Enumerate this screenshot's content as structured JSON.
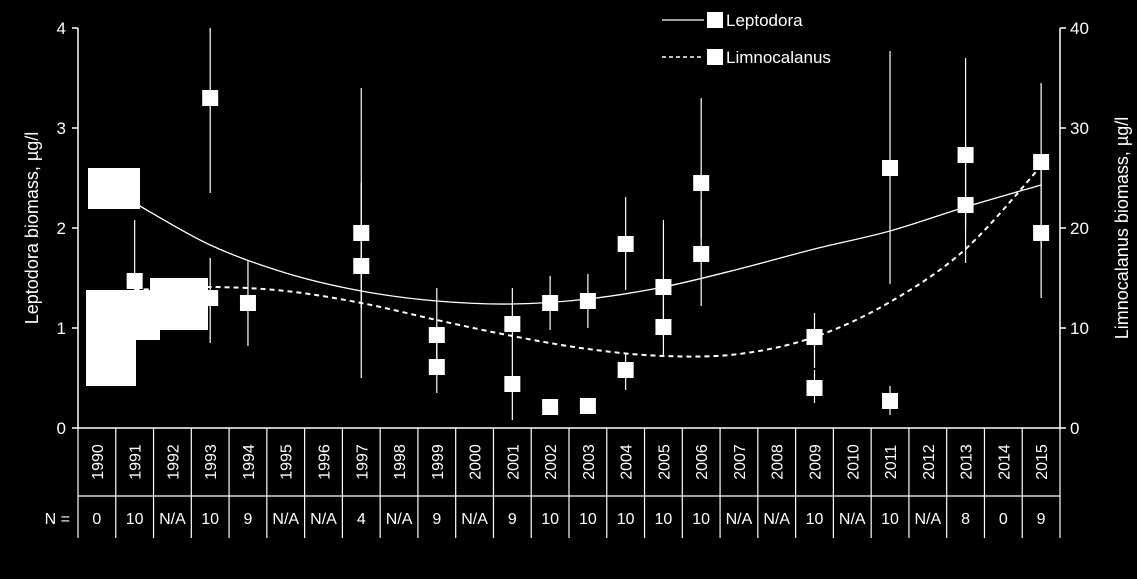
{
  "chart_data": {
    "type": "scatter",
    "years": [
      "1990",
      "1991",
      "1992",
      "1993",
      "1994",
      "1995",
      "1996",
      "1997",
      "1998",
      "1999",
      "2000",
      "2001",
      "2002",
      "2003",
      "2004",
      "2005",
      "2006",
      "2007",
      "2008",
      "2009",
      "2010",
      "2011",
      "2012",
      "2013",
      "2014",
      "2015"
    ],
    "n_label": "N =",
    "n_values": [
      "0",
      "10",
      "N/A",
      "10",
      "9",
      "N/A",
      "N/A",
      "4",
      "N/A",
      "9",
      "N/A",
      "9",
      "10",
      "10",
      "10",
      "10",
      "10",
      "N/A",
      "N/A",
      "10",
      "N/A",
      "10",
      "N/A",
      "8",
      "0",
      "9"
    ],
    "left_axis": {
      "label": "Leptodora biomass, µg/l",
      "min": 0,
      "max": 4,
      "ticks": [
        "0",
        "1",
        "2",
        "3",
        "4"
      ]
    },
    "right_axis": {
      "label": "Limnocalanus biomass, µg/l",
      "min": 0,
      "max": 40,
      "ticks": [
        "0",
        "10",
        "20",
        "30",
        "40"
      ]
    },
    "legend": [
      {
        "name": "Leptodora",
        "line": "solid"
      },
      {
        "name": "Limnocalanus",
        "line": "dashed"
      }
    ],
    "series": [
      {
        "name": "Leptodora",
        "axis": "left",
        "points": [
          {
            "year": "1991",
            "y": 1.47,
            "lo": 0.9,
            "hi": 2.08
          },
          {
            "year": "1993",
            "y": 1.3,
            "lo": 0.85,
            "hi": 1.7
          },
          {
            "year": "1994",
            "y": 1.25,
            "lo": 0.82,
            "hi": 1.68
          },
          {
            "year": "1997",
            "y": 1.95,
            "lo": 1.2,
            "hi": 2.45
          },
          {
            "year": "1999",
            "y": 0.61,
            "lo": 0.35,
            "hi": 0.85
          },
          {
            "year": "2001",
            "y": 0.44,
            "lo": 0.08,
            "hi": 0.7
          },
          {
            "year": "2002",
            "y": 1.25,
            "lo": 0.98,
            "hi": 1.52
          },
          {
            "year": "2003",
            "y": 1.27,
            "lo": 1.0,
            "hi": 1.54
          },
          {
            "year": "2004",
            "y": 1.84,
            "lo": 1.38,
            "hi": 2.31
          },
          {
            "year": "2005",
            "y": 1.01,
            "lo": 0.72,
            "hi": 1.3
          },
          {
            "year": "2006",
            "y": 1.74,
            "lo": 1.22,
            "hi": 2.29
          },
          {
            "year": "2009",
            "y": 0.4,
            "lo": 0.25,
            "hi": 0.58
          },
          {
            "year": "2011",
            "y": 2.6,
            "lo": 1.44,
            "hi": 3.77
          },
          {
            "year": "2013",
            "y": 2.23,
            "lo": 1.65,
            "hi": 2.85
          },
          {
            "year": "2015",
            "y": 1.95,
            "lo": 1.3,
            "hi": 2.6
          }
        ],
        "trend": [
          {
            "year": "1991",
            "y": 2.25
          },
          {
            "year": "1993",
            "y": 1.83
          },
          {
            "year": "1995",
            "y": 1.55
          },
          {
            "year": "1997",
            "y": 1.37
          },
          {
            "year": "1999",
            "y": 1.27
          },
          {
            "year": "2001",
            "y": 1.24
          },
          {
            "year": "2003",
            "y": 1.29
          },
          {
            "year": "2005",
            "y": 1.41
          },
          {
            "year": "2007",
            "y": 1.59
          },
          {
            "year": "2009",
            "y": 1.79
          },
          {
            "year": "2011",
            "y": 1.97
          },
          {
            "year": "2013",
            "y": 2.21
          },
          {
            "year": "2015",
            "y": 2.43
          }
        ]
      },
      {
        "name": "Limnocalanus",
        "axis": "right",
        "points": [
          {
            "year": "1993",
            "y": 33,
            "lo": 23.5,
            "hi": 40
          },
          {
            "year": "1997",
            "y": 16.2,
            "lo": 5,
            "hi": 34
          },
          {
            "year": "1999",
            "y": 9.3,
            "lo": 6,
            "hi": 14
          },
          {
            "year": "2001",
            "y": 10.4,
            "lo": 7,
            "hi": 14
          },
          {
            "year": "2002",
            "y": 2.1,
            "lo": 1.5,
            "hi": 2.8
          },
          {
            "year": "2003",
            "y": 2.2,
            "lo": 1.5,
            "hi": 2.9
          },
          {
            "year": "2004",
            "y": 5.8,
            "lo": 3.8,
            "hi": 7.5
          },
          {
            "year": "2005",
            "y": 14.1,
            "lo": 9,
            "hi": 20.8
          },
          {
            "year": "2006",
            "y": 24.5,
            "lo": 19,
            "hi": 33
          },
          {
            "year": "2009",
            "y": 9.1,
            "lo": 6,
            "hi": 11.5
          },
          {
            "year": "2011",
            "y": 2.7,
            "lo": 1.3,
            "hi": 4.2
          },
          {
            "year": "2013",
            "y": 27.3,
            "lo": 20,
            "hi": 37
          },
          {
            "year": "2015",
            "y": 26.6,
            "lo": 18,
            "hi": 34.5
          }
        ],
        "trend": [
          {
            "year": "1991",
            "y": 13.8
          },
          {
            "year": "1993",
            "y": 14.1
          },
          {
            "year": "1995",
            "y": 13.7
          },
          {
            "year": "1997",
            "y": 12.5
          },
          {
            "year": "1999",
            "y": 10.8
          },
          {
            "year": "2001",
            "y": 9.2
          },
          {
            "year": "2003",
            "y": 7.9
          },
          {
            "year": "2005",
            "y": 7.2
          },
          {
            "year": "2007",
            "y": 7.4
          },
          {
            "year": "2009",
            "y": 9.1
          },
          {
            "year": "2011",
            "y": 12.6
          },
          {
            "year": "2013",
            "y": 17.9
          },
          {
            "year": "2015",
            "y": 26.2
          }
        ]
      }
    ]
  }
}
